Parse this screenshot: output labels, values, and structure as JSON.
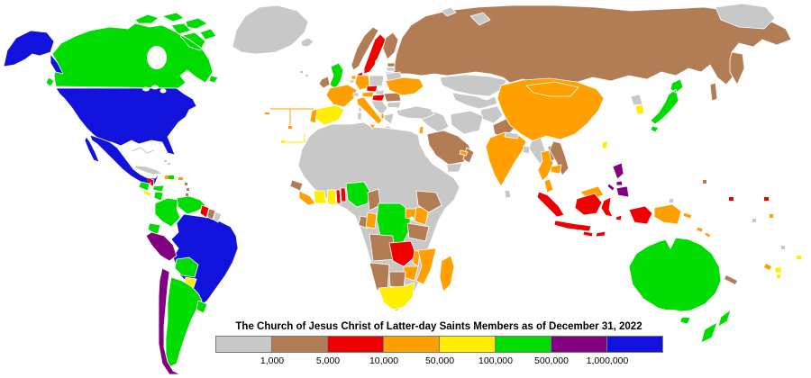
{
  "legend": {
    "title": "The Church of Jesus Christ of Latter-day Saints Members as of December 31, 2022",
    "labels": [
      "1,000",
      "5,000",
      "10,000",
      "50,000",
      "100,000",
      "500,000",
      "1,000,000"
    ],
    "categories": [
      {
        "id": "lt1k",
        "color": "#c8c8c8"
      },
      {
        "id": "1k-5k",
        "color": "#b27c55"
      },
      {
        "id": "5k-10k",
        "color": "#ee0000"
      },
      {
        "id": "10k-50k",
        "color": "#ffa000"
      },
      {
        "id": "50k-100k",
        "color": "#ffee00"
      },
      {
        "id": "100k-500k",
        "color": "#00dc00"
      },
      {
        "id": "500k-1m",
        "color": "#800080"
      },
      {
        "id": "gt1m",
        "color": "#1212dd"
      }
    ]
  },
  "map": {
    "ocean_color": "#ffffff",
    "border_color": "#ffffff",
    "countries": {
      "greenland": "lt1k",
      "canada": "100k-500k",
      "usa": "gt1m",
      "mexico": "gt1m",
      "guatemala": "100k-500k",
      "belize": "5k-10k",
      "honduras": "100k-500k",
      "el-salvador": "50k-100k",
      "nicaragua": "100k-500k",
      "costa-rica": "50k-100k",
      "panama": "50k-100k",
      "cuba": "lt1k",
      "jamaica": "5k-10k",
      "haiti": "10k-50k",
      "dominican-republic": "100k-500k",
      "puerto-rico": "10k-50k",
      "bahamas": "lt1k",
      "lesser-antilles": "1k-5k",
      "colombia": "100k-500k",
      "venezuela": "100k-500k",
      "guyana": "5k-10k",
      "suriname": "1k-5k",
      "french-guiana": "lt1k",
      "ecuador": "100k-500k",
      "peru": "500k-1m",
      "brazil": "gt1m",
      "bolivia": "100k-500k",
      "paraguay": "50k-100k",
      "chile": "500k-1m",
      "argentina": "100k-500k",
      "uruguay": "100k-500k",
      "iceland": "lt1k",
      "uk": "100k-500k",
      "ireland": "1k-5k",
      "norway": "1k-5k",
      "sweden": "5k-10k",
      "finland": "1k-5k",
      "denmark": "5k-10k",
      "estonia": "1k-5k",
      "latvia": "lt1k",
      "lithuania": "lt1k",
      "poland": "lt1k",
      "germany": "10k-50k",
      "netherlands": "10k-50k",
      "belgium": "lt1k",
      "france": "10k-50k",
      "spain": "50k-100k",
      "portugal": "10k-50k",
      "azores": "10k-50k",
      "atlantic-islands": "lt1k",
      "switzerland": "lt1k",
      "czechia": "5k-10k",
      "austria": "10k-50k",
      "slovakia": "lt1k",
      "hungary": "5k-10k",
      "italy": "10k-50k",
      "sardinia": "lt1k",
      "corsica": "lt1k",
      "balkans": "lt1k",
      "albania": "10k-50k",
      "greece": "lt1k",
      "romania": "1k-5k",
      "bulgaria": "lt1k",
      "ukraine": "10k-50k",
      "belarus": "lt1k",
      "russia": "1k-5k",
      "arctic-islands": "lt1k",
      "turkey": "lt1k",
      "syria-iraq": "lt1k",
      "israel": "10k-50k",
      "saudi-arabia": "1k-5k",
      "yemen": "lt1k",
      "oman": "1k-5k",
      "uae": "10k-50k",
      "iran": "lt1k",
      "kazakhstan": "lt1k",
      "central-asia": "lt1k",
      "afghanistan": "lt1k",
      "pakistan": "1k-5k",
      "china": "10k-50k",
      "mongolia": "10k-50k",
      "north-korea": "lt1k",
      "south-korea": "50k-100k",
      "japan": "100k-500k",
      "taiwan": "50k-100k",
      "india": "10k-50k",
      "nepal": "lt1k",
      "bangladesh": "lt1k",
      "sri-lanka": "lt1k",
      "myanmar": "lt1k",
      "thailand": "10k-50k",
      "laos": "1k-5k",
      "vietnam": "1k-5k",
      "cambodia": "10k-50k",
      "malaysia": "10k-50k",
      "indonesia": "5k-10k",
      "philippines": "500k-1m",
      "papua-new-guinea": "10k-50k",
      "solomon-islands": "10k-50k",
      "australia": "100k-500k",
      "new-zealand": "100k-500k",
      "new-caledonia": "1k-5k",
      "vanuatu": "10k-50k",
      "fiji": "50k-100k",
      "tonga": "50k-100k",
      "samoa": "50k-100k",
      "guam": "1k-5k",
      "palau": "lt1k",
      "marshall-islands": "5k-10k",
      "kiribati": "5k-10k",
      "tuvalu": "10k-50k",
      "nauru": "lt1k",
      "niue": "lt1k",
      "north-africa": "lt1k",
      "guinea": "1k-5k",
      "sierra-leone-liberia": "10k-50k",
      "ivory-coast": "50k-100k",
      "ghana": "50k-100k",
      "togo": "5k-10k",
      "benin": "5k-10k",
      "nigeria": "100k-500k",
      "cameroon": "1k-5k",
      "gabon": "1k-5k",
      "congo": "10k-50k",
      "drc": "100k-500k",
      "uganda": "10k-50k",
      "kenya": "10k-50k",
      "ethiopia": "1k-5k",
      "tanzania": "1k-5k",
      "angola": "1k-5k",
      "zambia": "5k-10k",
      "malawi": "10k-50k",
      "mozambique": "10k-50k",
      "zimbabwe": "10k-50k",
      "botswana": "1k-5k",
      "namibia": "1k-5k",
      "south-africa": "50k-100k",
      "madagascar": "10k-50k"
    }
  }
}
